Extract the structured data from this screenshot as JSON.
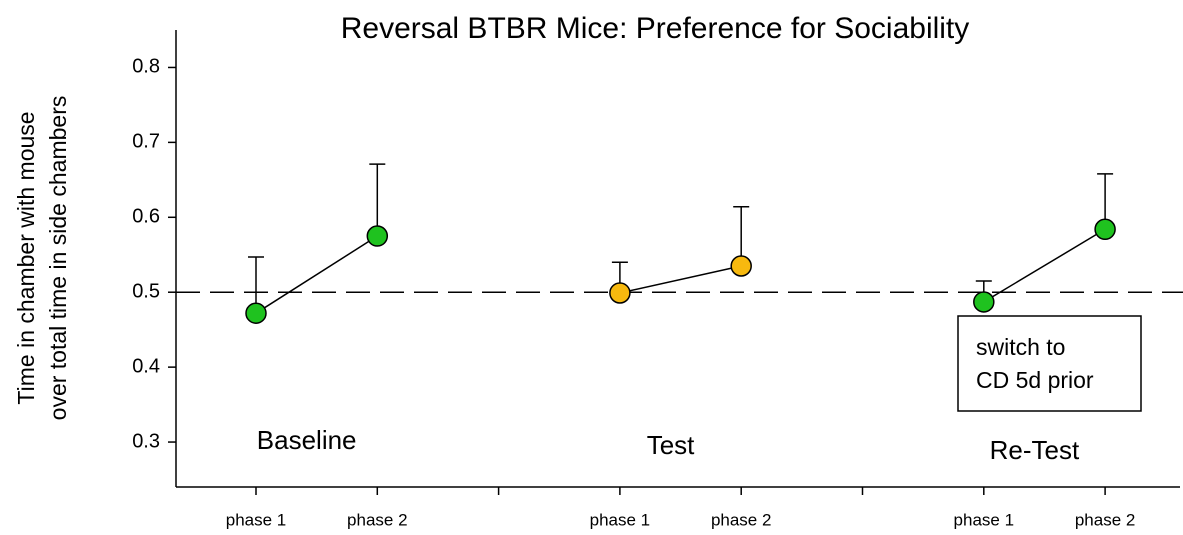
{
  "chart_data": {
    "type": "line",
    "title": "Reversal BTBR Mice: Preference for Sociability",
    "y_label": [
      "Time in chamber with mouse",
      "over total time in side chambers"
    ],
    "ylim": [
      0.24,
      0.85
    ],
    "yticks": [
      0.3,
      0.4,
      0.5,
      0.6,
      0.7,
      0.8
    ],
    "reference_line": 0.5,
    "groups": [
      {
        "name": "Baseline",
        "color": "#1fc21f",
        "categories": [
          "phase 1",
          "phase 2"
        ],
        "values": [
          0.472,
          0.575
        ],
        "errors": [
          0.075,
          0.096
        ]
      },
      {
        "name": "Test",
        "color": "#f7b90f",
        "categories": [
          "phase 1",
          "phase 2"
        ],
        "values": [
          0.499,
          0.535
        ],
        "errors": [
          0.041,
          0.079
        ]
      },
      {
        "name": "Re-Test",
        "color": "#1fc21f",
        "categories": [
          "phase 1",
          "phase 2"
        ],
        "values": [
          0.487,
          0.584
        ],
        "errors": [
          0.028,
          0.074
        ]
      }
    ],
    "annotation": [
      "switch to",
      "CD 5d prior"
    ]
  }
}
